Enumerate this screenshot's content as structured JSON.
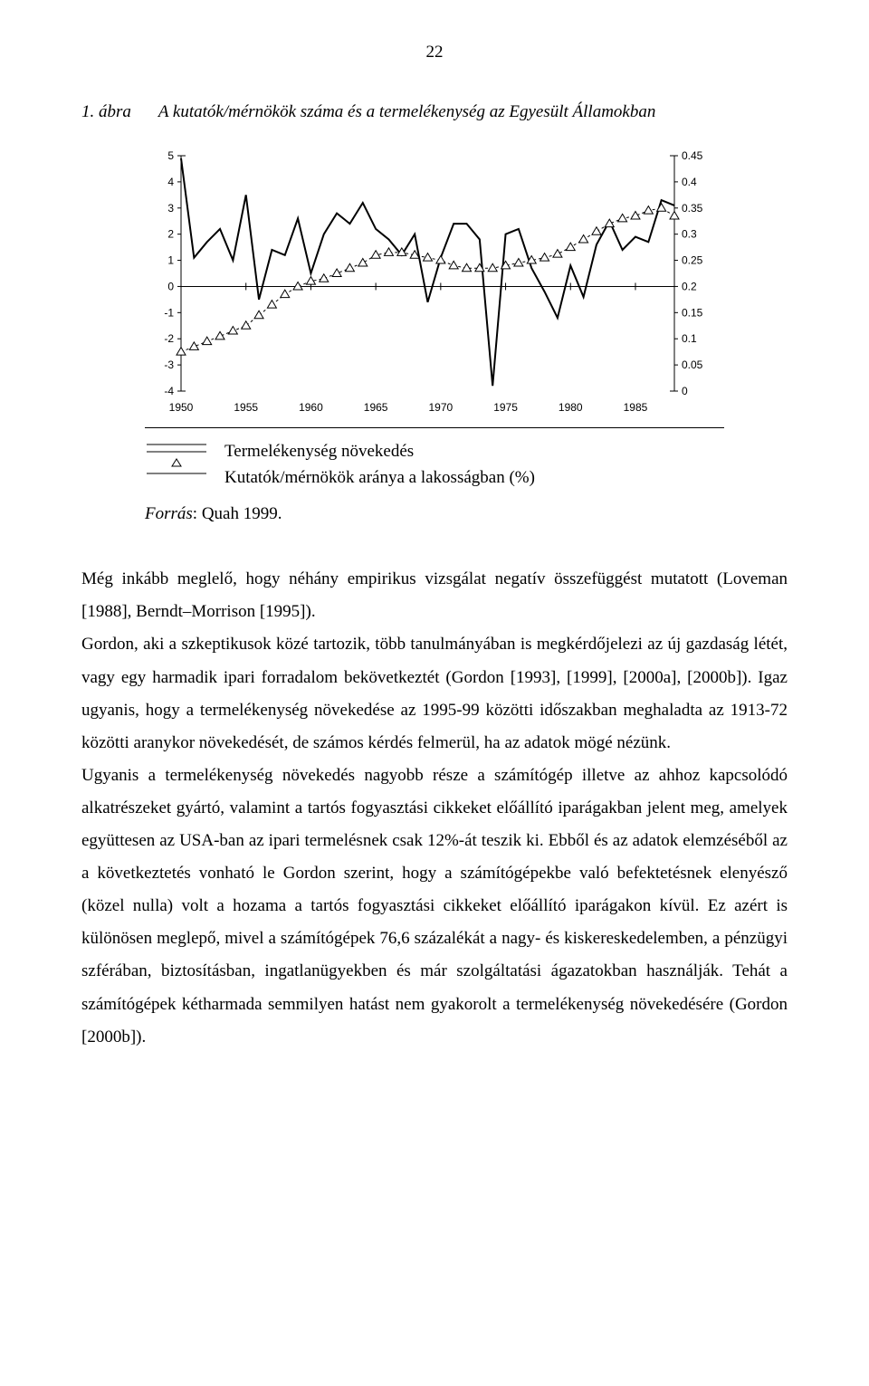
{
  "page_number": "22",
  "figure": {
    "label": "1. ábra",
    "title": "A kutatók/mérnökök száma és a termelékenység az Egyesült Államokban"
  },
  "chart": {
    "type": "line",
    "background_color": "#ffffff",
    "axis_color": "#000000",
    "left_axis": {
      "min": -4,
      "max": 5,
      "ticks": [
        -4,
        -3,
        -2,
        -1,
        0,
        1,
        2,
        3,
        4,
        5
      ],
      "label_fontsize": 12,
      "color": "#000000"
    },
    "right_axis": {
      "min": 0,
      "max": 0.45,
      "ticks": [
        0,
        0.05,
        0.1,
        0.15,
        0.2,
        0.25,
        0.3,
        0.35,
        0.4,
        0.45
      ],
      "label_fontsize": 12,
      "color": "#000000"
    },
    "x_axis": {
      "ticks": [
        1950,
        1955,
        1960,
        1965,
        1970,
        1975,
        1980,
        1985
      ],
      "label_fontsize": 12,
      "color": "#000000"
    },
    "series_solid": {
      "type": "line",
      "color": "#000000",
      "width": 2,
      "years": [
        1950,
        1951,
        1952,
        1953,
        1954,
        1955,
        1956,
        1957,
        1958,
        1959,
        1960,
        1961,
        1962,
        1963,
        1964,
        1965,
        1966,
        1967,
        1968,
        1969,
        1970,
        1971,
        1972,
        1973,
        1974,
        1975,
        1976,
        1977,
        1978,
        1979,
        1980,
        1981,
        1982,
        1983,
        1984,
        1985,
        1986,
        1987,
        1988
      ],
      "values": [
        4.9,
        1.1,
        1.7,
        2.2,
        1.0,
        3.5,
        -0.5,
        1.4,
        1.2,
        2.6,
        0.5,
        2.0,
        2.8,
        2.4,
        3.2,
        2.2,
        1.8,
        1.2,
        2.0,
        -0.6,
        1.1,
        2.4,
        2.4,
        1.8,
        -3.8,
        2.0,
        2.2,
        0.7,
        -0.2,
        -1.2,
        0.8,
        -0.4,
        1.6,
        2.5,
        1.4,
        1.9,
        1.7,
        3.3,
        3.1
      ]
    },
    "series_triangles": {
      "type": "line",
      "color": "#000000",
      "width": 1,
      "dash": "3,3",
      "marker": "triangle",
      "marker_size": 5,
      "years": [
        1950,
        1951,
        1952,
        1953,
        1954,
        1955,
        1956,
        1957,
        1958,
        1959,
        1960,
        1961,
        1962,
        1963,
        1964,
        1965,
        1966,
        1967,
        1968,
        1969,
        1970,
        1971,
        1972,
        1973,
        1974,
        1975,
        1976,
        1977,
        1978,
        1979,
        1980,
        1981,
        1982,
        1983,
        1984,
        1985,
        1986,
        1987,
        1988
      ],
      "values": [
        0.075,
        0.085,
        0.095,
        0.105,
        0.115,
        0.125,
        0.145,
        0.165,
        0.185,
        0.2,
        0.21,
        0.215,
        0.225,
        0.235,
        0.245,
        0.26,
        0.265,
        0.265,
        0.26,
        0.255,
        0.25,
        0.24,
        0.235,
        0.235,
        0.235,
        0.24,
        0.245,
        0.25,
        0.255,
        0.262,
        0.275,
        0.29,
        0.305,
        0.32,
        0.33,
        0.335,
        0.345,
        0.35,
        0.335
      ]
    }
  },
  "legend": {
    "solid": "Termelékenység növekedés",
    "triangle": "Kutatók/mérnökök aránya a lakosságban (%)"
  },
  "source": {
    "label": "Forrás",
    "text": ": Quah 1999."
  },
  "paragraphs": {
    "p1": "Még inkább meglelő, hogy néhány empirikus vizsgálat negatív összefüggést mutatott (Loveman [1988], Berndt–Morrison [1995]).",
    "p2": "Gordon, aki a szkeptikusok közé tartozik, több tanulmányában is megkérdőjelezi az új gazdaság létét, vagy egy harmadik ipari forradalom bekövetkeztét (Gordon [1993], [1999], [2000a], [2000b]). Igaz ugyanis, hogy a termelékenység növekedése az 1995-99 közötti időszakban meghaladta az 1913-72 közötti aranykor növekedését, de számos kérdés felmerül, ha az adatok mögé nézünk.",
    "p3": "Ugyanis a termelékenység növekedés nagyobb része a számítógép illetve az ahhoz kapcsolódó alkatrészeket gyártó, valamint a tartós fogyasztási cikkeket előállító iparágakban jelent meg, amelyek együttesen az USA-ban az ipari termelésnek csak 12%-át teszik ki. Ebből és az adatok elemzéséből az a következtetés vonható le Gordon szerint, hogy a számítógépekbe való befektetésnek elenyésző (közel nulla) volt a hozama a tartós fogyasztási cikkeket előállító iparágakon kívül. Ez azért is különösen meglepő, mivel a számítógépek 76,6 százalékát a nagy- és kiskereskedelemben, a pénzügyi szférában, biztosításban, ingatlanügyekben és már szolgáltatási ágazatokban használják. Tehát a számítógépek kétharmada semmilyen hatást nem gyakorolt a termelékenység növekedésére (Gordon [2000b])."
  }
}
